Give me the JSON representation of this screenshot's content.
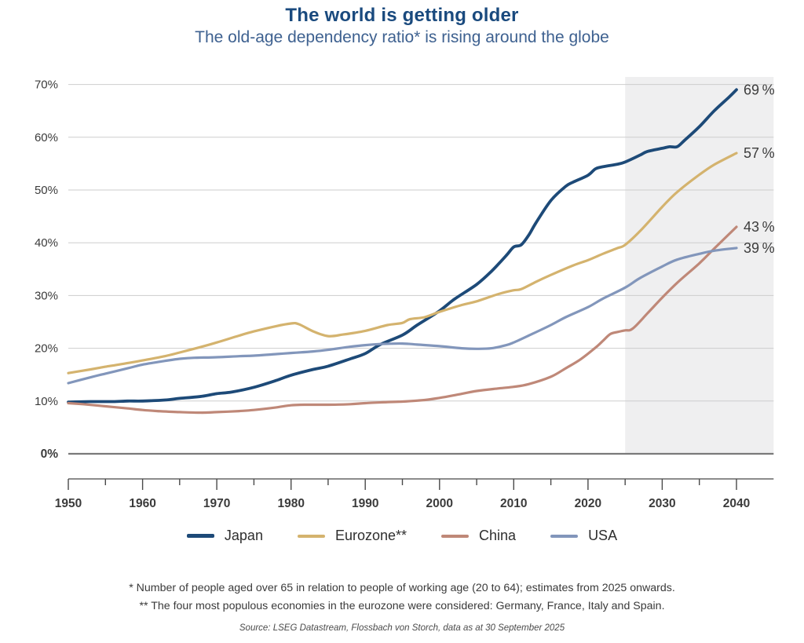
{
  "header": {
    "title": "The world is getting older",
    "subtitle": "The old-age dependency ratio* is rising around the globe"
  },
  "chart_data": {
    "type": "line",
    "title": "The world is getting older",
    "subtitle": "The old-age dependency ratio* is rising around the globe",
    "xlabel": "",
    "ylabel": "",
    "xlim": [
      1950,
      2045
    ],
    "ylim": [
      0,
      70
    ],
    "grid": "horizontal",
    "legend_position": "bottom",
    "y_axis": {
      "ticks": [
        {
          "value": 70,
          "label": "70%"
        },
        {
          "value": 60,
          "label": "60%"
        },
        {
          "value": 50,
          "label": "50%"
        },
        {
          "value": 40,
          "label": "40%"
        },
        {
          "value": 30,
          "label": "30%"
        },
        {
          "value": 20,
          "label": "20%"
        },
        {
          "value": 10,
          "label": "10%"
        },
        {
          "value": 0,
          "label": "0%",
          "bold": true
        }
      ]
    },
    "x_axis": {
      "labeled_ticks": [
        1950,
        1960,
        1970,
        1980,
        1990,
        2000,
        2010,
        2020,
        2030,
        2040
      ],
      "minor_tick_step": 5
    },
    "forecast_region": {
      "start": 2025,
      "end": 2045,
      "fill": "#efeff0",
      "meaning": "estimates from 2025 onwards"
    },
    "series": [
      {
        "name": "Japan",
        "color": "#1d4a78",
        "width": 3.8,
        "end_label": "69 %",
        "points": [
          [
            1950,
            9.8
          ],
          [
            1953,
            9.9
          ],
          [
            1956,
            9.9
          ],
          [
            1958,
            10.0
          ],
          [
            1960,
            10.0
          ],
          [
            1963,
            10.2
          ],
          [
            1965,
            10.5
          ],
          [
            1968,
            10.9
          ],
          [
            1970,
            11.4
          ],
          [
            1972,
            11.7
          ],
          [
            1975,
            12.6
          ],
          [
            1978,
            13.9
          ],
          [
            1980,
            14.9
          ],
          [
            1983,
            16.0
          ],
          [
            1985,
            16.6
          ],
          [
            1988,
            18.0
          ],
          [
            1990,
            19.0
          ],
          [
            1992,
            20.7
          ],
          [
            1995,
            22.5
          ],
          [
            1997,
            24.4
          ],
          [
            2000,
            27.1
          ],
          [
            2002,
            29.3
          ],
          [
            2005,
            32.1
          ],
          [
            2007,
            34.6
          ],
          [
            2009,
            37.6
          ],
          [
            2010,
            39.2
          ],
          [
            2011,
            39.6
          ],
          [
            2012,
            41.4
          ],
          [
            2013,
            43.8
          ],
          [
            2015,
            48.0
          ],
          [
            2017,
            50.7
          ],
          [
            2018,
            51.5
          ],
          [
            2020,
            52.8
          ],
          [
            2021,
            54.0
          ],
          [
            2022,
            54.4
          ],
          [
            2024,
            54.9
          ],
          [
            2025,
            55.3
          ],
          [
            2027,
            56.6
          ],
          [
            2028,
            57.3
          ],
          [
            2030,
            57.9
          ],
          [
            2031,
            58.2
          ],
          [
            2032,
            58.2
          ],
          [
            2033,
            59.4
          ],
          [
            2035,
            62.0
          ],
          [
            2037,
            65.0
          ],
          [
            2039,
            67.6
          ],
          [
            2040,
            69.0
          ]
        ]
      },
      {
        "name": "Eurozone**",
        "color": "#d4b36e",
        "width": 3.2,
        "end_label": "57 %",
        "points": [
          [
            1950,
            15.3
          ],
          [
            1953,
            16.0
          ],
          [
            1955,
            16.5
          ],
          [
            1958,
            17.2
          ],
          [
            1960,
            17.7
          ],
          [
            1963,
            18.5
          ],
          [
            1965,
            19.2
          ],
          [
            1968,
            20.3
          ],
          [
            1970,
            21.1
          ],
          [
            1973,
            22.4
          ],
          [
            1975,
            23.2
          ],
          [
            1978,
            24.2
          ],
          [
            1980,
            24.7
          ],
          [
            1981,
            24.6
          ],
          [
            1983,
            23.2
          ],
          [
            1985,
            22.3
          ],
          [
            1987,
            22.6
          ],
          [
            1990,
            23.3
          ],
          [
            1993,
            24.4
          ],
          [
            1995,
            24.8
          ],
          [
            1996,
            25.5
          ],
          [
            1998,
            25.9
          ],
          [
            2000,
            26.9
          ],
          [
            2003,
            28.2
          ],
          [
            2005,
            28.9
          ],
          [
            2008,
            30.3
          ],
          [
            2010,
            31.0
          ],
          [
            2011,
            31.2
          ],
          [
            2013,
            32.6
          ],
          [
            2015,
            33.9
          ],
          [
            2018,
            35.7
          ],
          [
            2020,
            36.7
          ],
          [
            2022,
            37.9
          ],
          [
            2024,
            39.0
          ],
          [
            2025,
            39.6
          ],
          [
            2027,
            42.2
          ],
          [
            2030,
            46.8
          ],
          [
            2032,
            49.6
          ],
          [
            2035,
            52.9
          ],
          [
            2037,
            54.8
          ],
          [
            2040,
            57.0
          ]
        ]
      },
      {
        "name": "China",
        "color": "#bf8878",
        "width": 3.2,
        "end_label": "43 %",
        "points": [
          [
            1950,
            9.6
          ],
          [
            1952,
            9.4
          ],
          [
            1955,
            9.0
          ],
          [
            1958,
            8.6
          ],
          [
            1960,
            8.3
          ],
          [
            1962,
            8.1
          ],
          [
            1965,
            7.9
          ],
          [
            1968,
            7.8
          ],
          [
            1970,
            7.9
          ],
          [
            1973,
            8.1
          ],
          [
            1975,
            8.3
          ],
          [
            1978,
            8.8
          ],
          [
            1980,
            9.2
          ],
          [
            1982,
            9.3
          ],
          [
            1985,
            9.3
          ],
          [
            1988,
            9.4
          ],
          [
            1990,
            9.6
          ],
          [
            1993,
            9.8
          ],
          [
            1995,
            9.9
          ],
          [
            1998,
            10.2
          ],
          [
            2000,
            10.6
          ],
          [
            2002,
            11.1
          ],
          [
            2005,
            11.9
          ],
          [
            2008,
            12.4
          ],
          [
            2010,
            12.7
          ],
          [
            2012,
            13.2
          ],
          [
            2015,
            14.6
          ],
          [
            2017,
            16.2
          ],
          [
            2019,
            17.9
          ],
          [
            2021,
            20.1
          ],
          [
            2022,
            21.4
          ],
          [
            2023,
            22.7
          ],
          [
            2024,
            23.1
          ],
          [
            2025,
            23.4
          ],
          [
            2026,
            23.7
          ],
          [
            2028,
            26.6
          ],
          [
            2030,
            29.6
          ],
          [
            2032,
            32.4
          ],
          [
            2035,
            36.1
          ],
          [
            2037,
            38.9
          ],
          [
            2040,
            43.0
          ]
        ]
      },
      {
        "name": "USA",
        "color": "#8296bb",
        "width": 3.2,
        "end_label": "39 %",
        "points": [
          [
            1950,
            13.4
          ],
          [
            1953,
            14.5
          ],
          [
            1955,
            15.2
          ],
          [
            1958,
            16.2
          ],
          [
            1960,
            16.9
          ],
          [
            1963,
            17.6
          ],
          [
            1965,
            18.0
          ],
          [
            1967,
            18.2
          ],
          [
            1970,
            18.3
          ],
          [
            1973,
            18.5
          ],
          [
            1975,
            18.6
          ],
          [
            1978,
            18.9
          ],
          [
            1980,
            19.1
          ],
          [
            1983,
            19.4
          ],
          [
            1985,
            19.7
          ],
          [
            1988,
            20.3
          ],
          [
            1990,
            20.6
          ],
          [
            1992,
            20.8
          ],
          [
            1995,
            20.9
          ],
          [
            1997,
            20.7
          ],
          [
            2000,
            20.4
          ],
          [
            2003,
            20.0
          ],
          [
            2005,
            19.9
          ],
          [
            2007,
            20.0
          ],
          [
            2009,
            20.6
          ],
          [
            2010,
            21.1
          ],
          [
            2012,
            22.4
          ],
          [
            2015,
            24.4
          ],
          [
            2017,
            25.9
          ],
          [
            2020,
            27.8
          ],
          [
            2022,
            29.4
          ],
          [
            2025,
            31.5
          ],
          [
            2027,
            33.3
          ],
          [
            2030,
            35.5
          ],
          [
            2032,
            36.8
          ],
          [
            2035,
            37.9
          ],
          [
            2037,
            38.5
          ],
          [
            2040,
            39.0
          ]
        ]
      }
    ],
    "colors": {
      "title": "#1a4a7e",
      "subtitle": "#3e6190",
      "axis_text": "#3b3b3b",
      "gridline": "#cdcdcd",
      "zero_line": "#7a7a7a",
      "timeline": "#8c8c8c",
      "forecast_shade": "#efeff0"
    }
  },
  "footnotes": {
    "line1": "* Number of people aged over 65 in relation to people of working age (20 to 64); estimates from 2025 onwards.",
    "line2": "** The four most populous economies in the eurozone were considered: Germany, France, Italy and Spain.",
    "source": "Source: LSEG Datastream, Flossbach von Storch, data as at 30 September 2025"
  }
}
